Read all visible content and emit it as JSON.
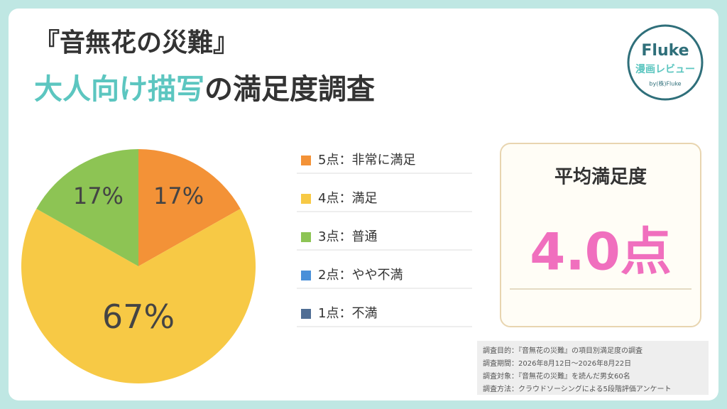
{
  "header": {
    "title_line1": "『音無花の災難』",
    "title_highlight": "大人向け描写",
    "title_rest": "の満足度調査"
  },
  "logo": {
    "name": "Fluke",
    "subtitle": "漫画レビュー",
    "by": "by(株)Fluke"
  },
  "chart_data": {
    "type": "pie",
    "categories": [
      "5点：非常に満足",
      "4点：満足",
      "3点：普通",
      "2点：やや不満",
      "1点：不満"
    ],
    "values": [
      17,
      67,
      17,
      0,
      0
    ],
    "value_labels": [
      "17%",
      "67%",
      "17%",
      null,
      null
    ],
    "colors": [
      "#f39237",
      "#f7c945",
      "#8dc454",
      "#4a90d9",
      "#4f6d94"
    ]
  },
  "summary": {
    "label": "平均満足度",
    "value": "4.0点"
  },
  "notes": [
    "調査目的：『音無花の災難』の項目別満足度の調査",
    "調査期間：2026年8月12日〜2026年8月22日",
    "調査対象：『音無花の災難』を読んだ男女60名",
    "調査方法：クラウドソーシングによる5段階評価アンケート"
  ]
}
